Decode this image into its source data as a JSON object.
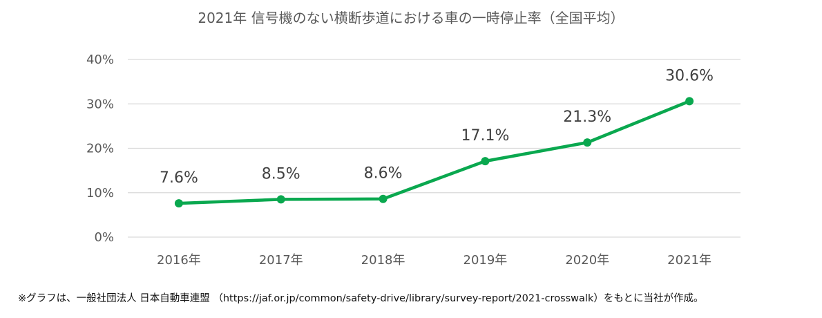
{
  "chart_data": {
    "type": "line",
    "title": "2021年 信号機のない横断歩道における車の一時停止率（全国平均）",
    "categories": [
      "2016年",
      "2017年",
      "2018年",
      "2019年",
      "2020年",
      "2021年"
    ],
    "series": [
      {
        "values": [
          7.6,
          8.5,
          8.6,
          17.1,
          21.3,
          30.6
        ],
        "color": "#0aa84f"
      }
    ],
    "data_labels": [
      "7.6%",
      "8.5%",
      "8.6%",
      "17.1%",
      "21.3%",
      "30.6%"
    ],
    "y_ticks": [
      0,
      10,
      20,
      30,
      40
    ],
    "y_tick_labels": [
      "0%",
      "10%",
      "20%",
      "30%",
      "40%"
    ],
    "ylim": [
      0,
      40
    ],
    "xlabel": "",
    "ylabel": "",
    "grid": true,
    "legend": "none"
  },
  "footnote": "※グラフは、一般社団法人 日本自動車連盟 （https://jaf.or.jp/common/safety-drive/library/survey-report/2021-crosswalk）をもとに当社が作成。",
  "colors": {
    "line": "#0aa84f",
    "grid": "#d9d9d9",
    "text": "#595959"
  }
}
